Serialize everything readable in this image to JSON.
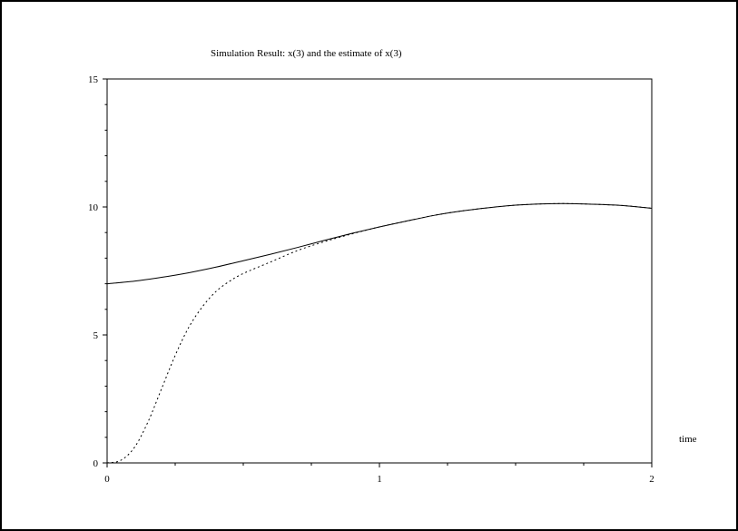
{
  "chart_data": {
    "type": "line",
    "title": "Simulation Result: x(3) and the estimate of x(3)",
    "xlabel": "time",
    "ylabel": "",
    "xlim": [
      0,
      2
    ],
    "ylim": [
      0,
      15
    ],
    "x_ticks": [
      "0",
      "1",
      "2"
    ],
    "y_ticks": [
      "0",
      "5",
      "10",
      "15"
    ],
    "grid": false,
    "series": [
      {
        "style": "solid",
        "x": [
          0,
          0.1,
          0.2,
          0.3,
          0.4,
          0.5,
          0.6,
          0.7,
          0.8,
          0.9,
          1.0,
          1.1,
          1.2,
          1.3,
          1.4,
          1.5,
          1.6,
          1.7,
          1.8,
          1.9,
          2.0
        ],
        "y": [
          7.0,
          7.1,
          7.25,
          7.43,
          7.65,
          7.9,
          8.15,
          8.42,
          8.7,
          8.97,
          9.22,
          9.45,
          9.67,
          9.84,
          9.97,
          10.07,
          10.12,
          10.13,
          10.1,
          10.05,
          9.95
        ]
      },
      {
        "style": "dotted",
        "x": [
          0,
          0.05,
          0.1,
          0.15,
          0.2,
          0.25,
          0.3,
          0.35,
          0.4,
          0.45,
          0.5,
          0.6,
          0.7,
          0.8,
          0.9,
          1.0,
          1.1,
          1.2,
          1.3,
          1.4,
          1.5,
          1.6,
          1.7,
          1.8,
          1.9,
          2.0
        ],
        "y": [
          0,
          0.1,
          0.6,
          1.6,
          2.9,
          4.2,
          5.3,
          6.1,
          6.7,
          7.1,
          7.4,
          7.85,
          8.3,
          8.65,
          8.95,
          9.22,
          9.45,
          9.67,
          9.84,
          9.97,
          10.07,
          10.12,
          10.13,
          10.1,
          10.05,
          9.95
        ]
      }
    ]
  }
}
